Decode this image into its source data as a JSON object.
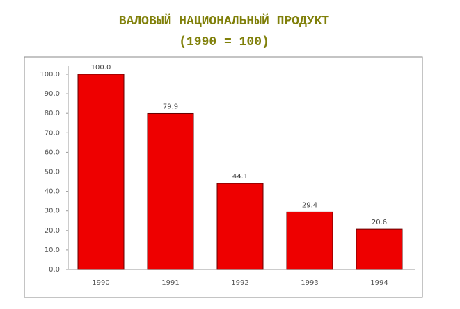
{
  "chart_data": {
    "type": "bar",
    "title": "ВАЛОВЫЙ НАЦИОНАЛЬНЫЙ ПРОДУКТ",
    "subtitle": "(1990 = 100)",
    "categories": [
      "1990",
      "1991",
      "1992",
      "1993",
      "1994"
    ],
    "values": [
      100,
      79.9,
      44.1,
      29.4,
      20.6
    ],
    "value_labels": [
      "100.0",
      "79.9",
      "44.1",
      "29.4",
      "20.6"
    ],
    "color": "#ee0000",
    "ylim": [
      0,
      100
    ],
    "yticks": [
      {
        "value": 0,
        "label": "0.0"
      },
      {
        "value": 10,
        "label": "10.0"
      },
      {
        "value": 20,
        "label": "20.0"
      },
      {
        "value": 30,
        "label": "30.0"
      },
      {
        "value": 40,
        "label": "40.0"
      },
      {
        "value": 50,
        "label": "50.0"
      },
      {
        "value": 60,
        "label": "60.0"
      },
      {
        "value": 70,
        "label": "70.0"
      },
      {
        "value": 80,
        "label": "80.0"
      },
      {
        "value": 90,
        "label": "90.0"
      },
      {
        "value": 100,
        "label": "100.0"
      }
    ],
    "grid": false
  }
}
